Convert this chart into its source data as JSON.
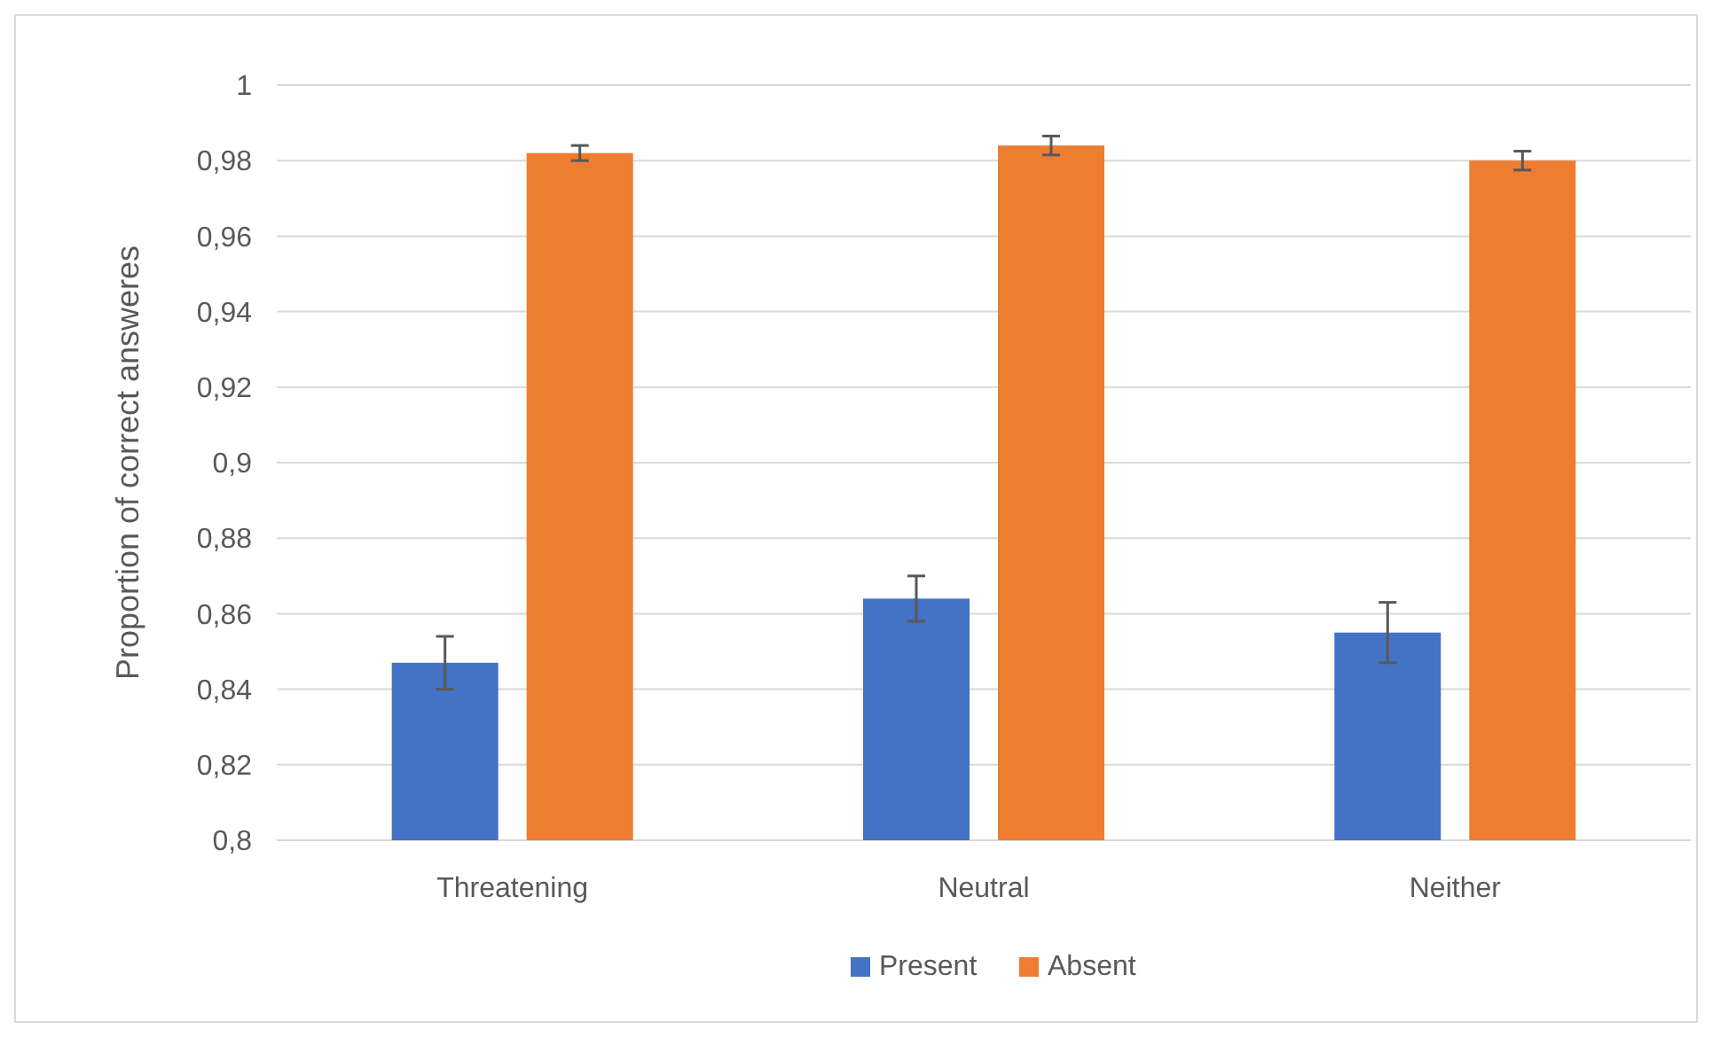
{
  "chart_data": {
    "type": "bar",
    "ylabel": "Proportion of correct answeres",
    "categories": [
      "Threatening",
      "Neutral",
      "Neither"
    ],
    "series": [
      {
        "name": "Present",
        "color": "#4472c4",
        "values": [
          0.847,
          0.864,
          0.855
        ],
        "errors": [
          0.007,
          0.006,
          0.008
        ]
      },
      {
        "name": "Absent",
        "color": "#ed7d31",
        "values": [
          0.982,
          0.984,
          0.98
        ],
        "errors": [
          0.002,
          0.0025,
          0.0025
        ]
      }
    ],
    "ylim": [
      0.8,
      1
    ],
    "yticks": [
      {
        "value": 0.8,
        "label": "0,8"
      },
      {
        "value": 0.82,
        "label": "0,82"
      },
      {
        "value": 0.84,
        "label": "0,84"
      },
      {
        "value": 0.86,
        "label": "0,86"
      },
      {
        "value": 0.88,
        "label": "0,88"
      },
      {
        "value": 0.9,
        "label": "0,9"
      },
      {
        "value": 0.92,
        "label": "0,92"
      },
      {
        "value": 0.94,
        "label": "0,94"
      },
      {
        "value": 0.96,
        "label": "0,96"
      },
      {
        "value": 0.98,
        "label": "0,98"
      },
      {
        "value": 1,
        "label": "1"
      }
    ],
    "grid": "y",
    "legend": "bottom"
  }
}
